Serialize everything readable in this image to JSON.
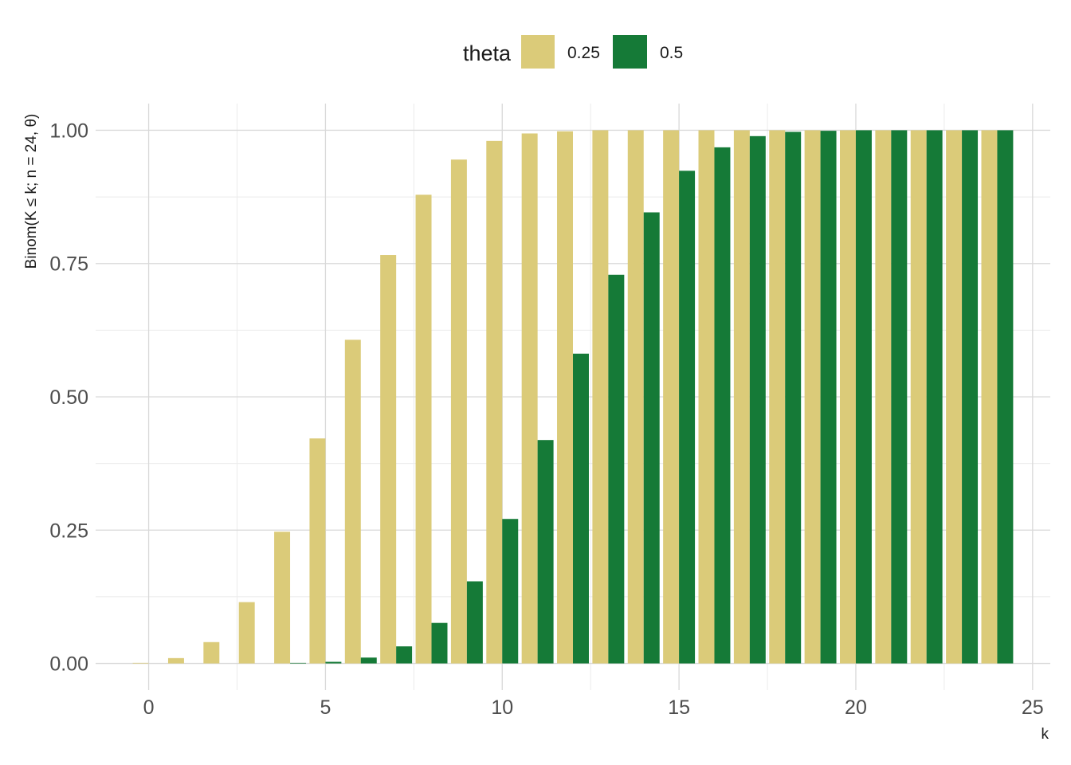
{
  "chart_data": {
    "type": "bar",
    "title": "",
    "xlabel": "k",
    "ylabel": "Binom(K ≤ k; n = 24, θ)",
    "x": [
      0,
      1,
      2,
      3,
      4,
      5,
      6,
      7,
      8,
      9,
      10,
      11,
      12,
      13,
      14,
      15,
      16,
      17,
      18,
      19,
      20,
      21,
      22,
      23,
      24
    ],
    "xlim": [
      -1.5,
      25.5
    ],
    "ylim": [
      -0.05,
      1.05
    ],
    "x_ticks": [
      0,
      5,
      10,
      15,
      20,
      25
    ],
    "x_tick_labels": [
      "0",
      "5",
      "10",
      "15",
      "20",
      "25"
    ],
    "y_ticks": [
      0,
      0.25,
      0.5,
      0.75,
      1.0
    ],
    "y_tick_labels": [
      "0.00",
      "0.25",
      "0.50",
      "0.75",
      "1.00"
    ],
    "grid": true,
    "legend": {
      "title": "theta",
      "position": "top",
      "entries": [
        "0.25",
        "0.5"
      ]
    },
    "series": [
      {
        "name": "0.25",
        "color": "#dbcb79",
        "values": [
          0.001,
          0.01,
          0.04,
          0.115,
          0.247,
          0.422,
          0.607,
          0.766,
          0.879,
          0.945,
          0.98,
          0.994,
          0.998,
          1.0,
          1.0,
          1.0,
          1.0,
          1.0,
          1.0,
          1.0,
          1.0,
          1.0,
          1.0,
          1.0,
          1.0
        ]
      },
      {
        "name": "0.5",
        "color": "#157a37",
        "values": [
          0.0,
          0.0,
          0.0,
          0.0,
          0.001,
          0.003,
          0.011,
          0.032,
          0.076,
          0.154,
          0.271,
          0.419,
          0.581,
          0.729,
          0.846,
          0.924,
          0.968,
          0.989,
          0.997,
          0.999,
          1.0,
          1.0,
          1.0,
          1.0,
          1.0
        ]
      }
    ]
  }
}
